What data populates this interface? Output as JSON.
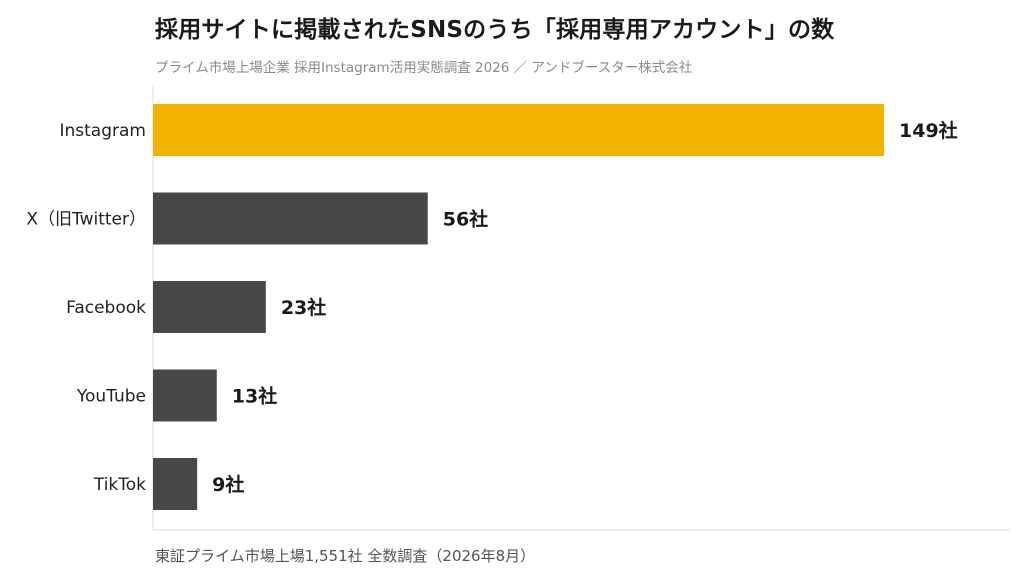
{
  "header": {
    "title": "採用サイトに掲載されたSNSのうち「採用専用アカウント」の数",
    "subtitle": "プライム市場上場企業 採用Instagram活用実態調査 2026 ／ アンドブースター株式会社"
  },
  "footer": {
    "note": "東証プライム市場上場1,551社 全数調査（2026年8月）"
  },
  "colors": {
    "highlight": "#F2B300",
    "default": "#484848",
    "axis": "#dddddd",
    "label": "#222222",
    "value_label": "#1a1a1a"
  },
  "chart_data": {
    "type": "bar",
    "orientation": "horizontal",
    "title": "採用サイトに掲載されたSNSのうち「採用専用アカウント」の数",
    "subtitle": "プライム市場上場企業 採用Instagram活用実態調査 2026 ／ アンドブースター株式会社",
    "xlabel": "",
    "ylabel": "",
    "categories": [
      "Instagram",
      "X（旧Twitter）",
      "Facebook",
      "YouTube",
      "TikTok"
    ],
    "values": [
      149,
      56,
      23,
      13,
      9
    ],
    "value_labels": [
      "149社",
      "56社",
      "23社",
      "13社",
      "9社"
    ],
    "highlight_index": 0,
    "xlim": [
      0,
      149
    ],
    "grid": false,
    "legend": "none"
  }
}
